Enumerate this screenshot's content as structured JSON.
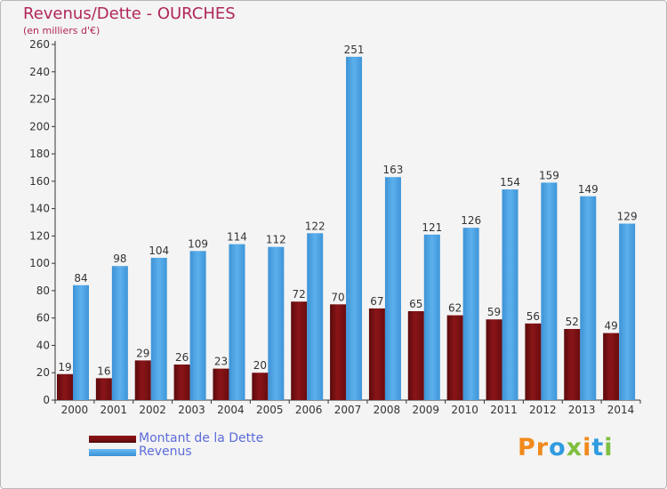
{
  "title": "Revenus/Dette - OURCHES",
  "subtitle": "(en milliers d'€)",
  "logo": {
    "p": "P",
    "r": "r",
    "o": "o",
    "x": "x",
    "i": "i",
    "t": "t",
    "i2": "i"
  },
  "colors": {
    "dette": "#7a0f12",
    "revenus": "#4ba3e3",
    "title": "#b0265a",
    "legend_text": "#5b6bd9"
  },
  "legend": [
    {
      "label": "Montant de la Dette"
    },
    {
      "label": "Revenus"
    }
  ],
  "chart_data": {
    "type": "bar",
    "title": "Revenus/Dette - OURCHES",
    "subtitle": "(en milliers d'€)",
    "categories": [
      "2000",
      "2001",
      "2002",
      "2003",
      "2004",
      "2005",
      "2006",
      "2007",
      "2008",
      "2009",
      "2010",
      "2011",
      "2012",
      "2013",
      "2014"
    ],
    "series": [
      {
        "name": "Montant de la Dette",
        "values": [
          19,
          16,
          29,
          26,
          23,
          20,
          72,
          70,
          67,
          65,
          62,
          59,
          56,
          52,
          49
        ]
      },
      {
        "name": "Revenus",
        "values": [
          84,
          98,
          104,
          109,
          114,
          112,
          122,
          251,
          163,
          121,
          126,
          154,
          159,
          149,
          129
        ]
      }
    ],
    "ylim": [
      0,
      260
    ],
    "yticks": [
      0,
      20,
      40,
      60,
      80,
      100,
      120,
      140,
      160,
      180,
      200,
      220,
      240,
      260
    ],
    "grid": false,
    "legend_position": "bottom-left"
  }
}
